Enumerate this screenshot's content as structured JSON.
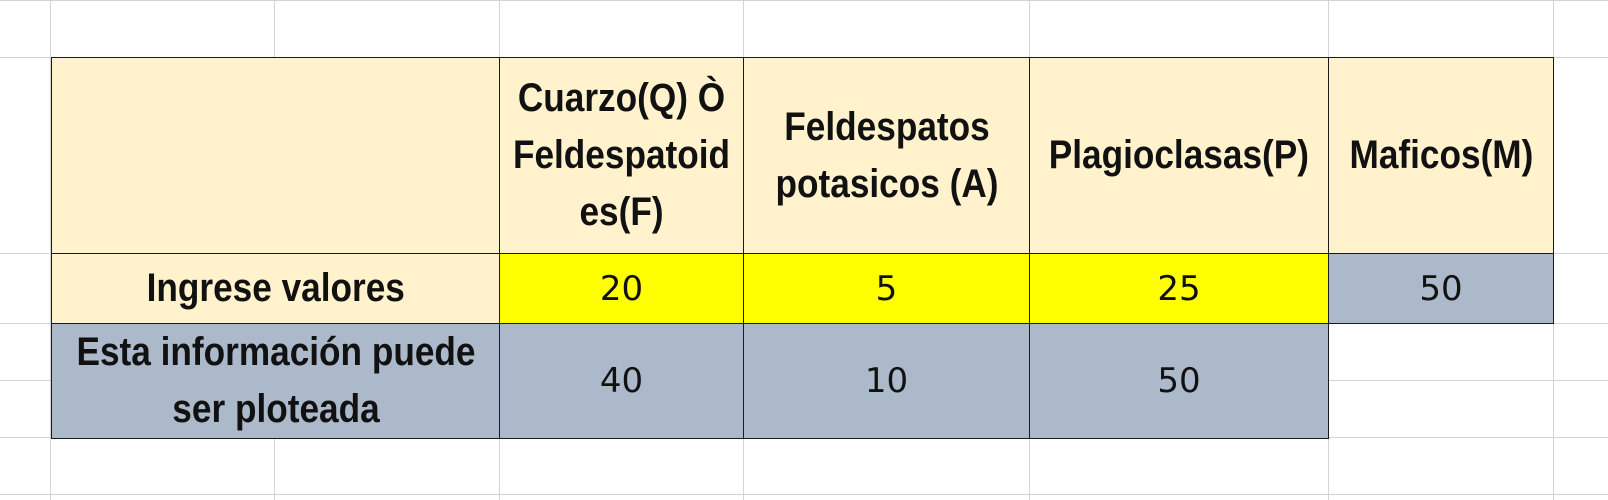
{
  "table": {
    "headers": {
      "blank": "",
      "quartz": "Cuarzo(Q) Ò Feldespatoid es(F)",
      "feldspar": "Feldespatos potasicos (A)",
      "plagioclase": "Plagioclasas(P)",
      "mafic": "Maficos(M)"
    },
    "input_row": {
      "label": "Ingrese valores",
      "quartz": "20",
      "feldspar": "5",
      "plagioclase": "25",
      "mafic": "50"
    },
    "plot_row": {
      "label": "Esta información puede ser ploteada",
      "quartz": "40",
      "feldspar": "10",
      "plagioclase": "50"
    }
  },
  "colors": {
    "header_fill": "#fff2cc",
    "input_fill": "#ffff00",
    "computed_fill": "#acb9ca",
    "border": "#1a1a1a",
    "gridline": "#d4d4d4"
  }
}
